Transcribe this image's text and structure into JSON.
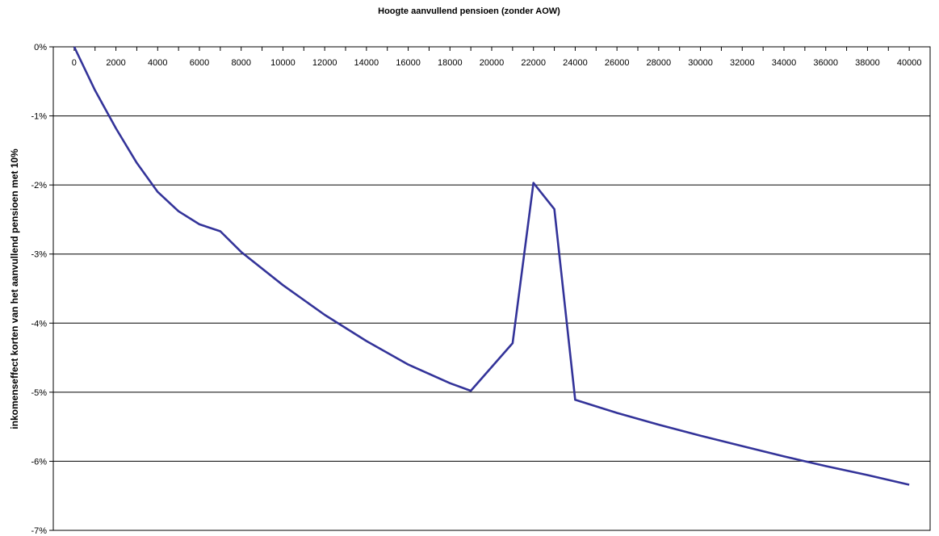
{
  "chart_data": {
    "type": "line",
    "title": "Hoogte aanvullend pensioen (zonder AOW)",
    "xlabel": "",
    "ylabel": "inkomenseffect korten van het aanvullend pensioen met 10%",
    "x_ticks": [
      "0",
      "2000",
      "4000",
      "6000",
      "8000",
      "10000",
      "12000",
      "14000",
      "16000",
      "18000",
      "20000",
      "22000",
      "24000",
      "26000",
      "28000",
      "30000",
      "32000",
      "34000",
      "36000",
      "38000",
      "40000"
    ],
    "y_ticks": [
      "0%",
      "-1%",
      "-2%",
      "-3%",
      "-4%",
      "-5%",
      "-6%",
      "-7%"
    ],
    "ylim": [
      -7,
      0
    ],
    "xlim": [
      -1000,
      41000
    ],
    "grid": "horizontal",
    "legend": "none",
    "line_color": "#333399",
    "series": [
      {
        "x": [
          0,
          1000,
          2000,
          3000,
          4000,
          5000,
          6000,
          7000,
          8000,
          10000,
          12000,
          14000,
          16000,
          18000,
          19000,
          21000,
          22000,
          23000,
          24000,
          26000,
          28000,
          30000,
          32000,
          34000,
          36000,
          38000,
          40000
        ],
        "values": [
          0.0,
          -0.63,
          -1.18,
          -1.68,
          -2.1,
          -2.38,
          -2.57,
          -2.67,
          -2.97,
          -3.45,
          -3.88,
          -4.26,
          -4.6,
          -4.87,
          -4.98,
          -4.29,
          -1.97,
          -2.35,
          -5.11,
          -5.3,
          -5.47,
          -5.63,
          -5.78,
          -5.93,
          -6.07,
          -6.2,
          -6.34
        ]
      }
    ]
  }
}
